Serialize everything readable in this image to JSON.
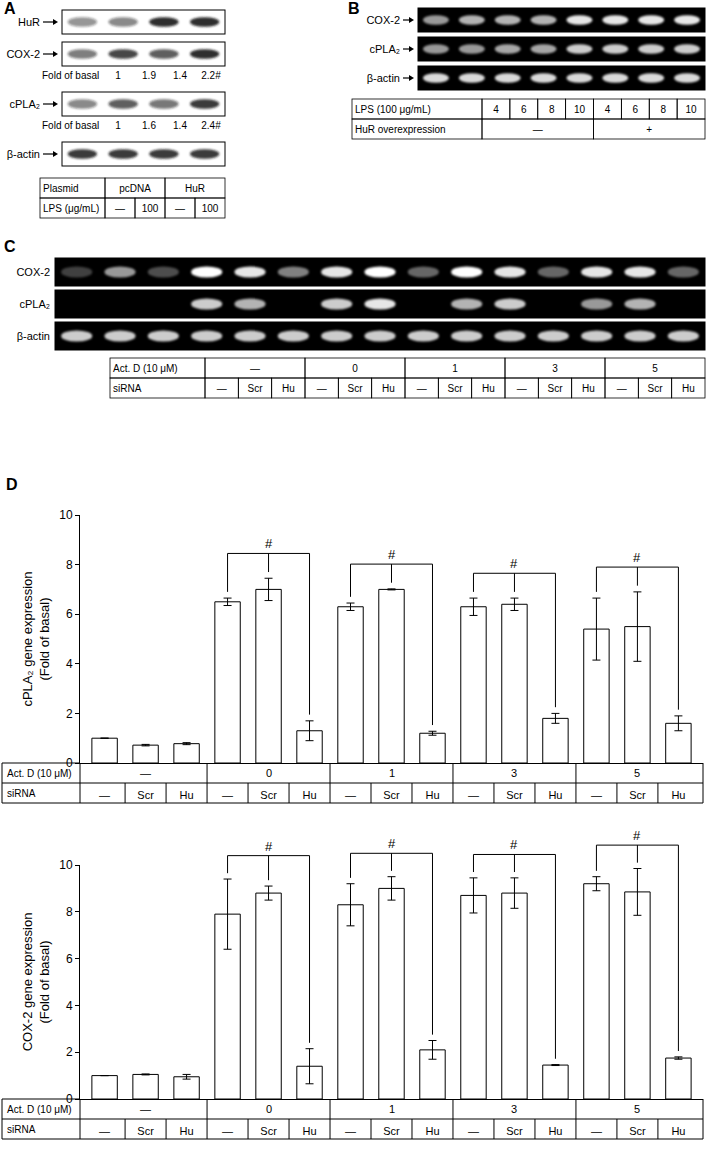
{
  "blots": [
    {
      "panel": "A",
      "kind": "western",
      "arrows": true,
      "rows": [
        {
          "name": "HuR",
          "bands": [
            0.45,
            0.5,
            0.9,
            0.9
          ]
        },
        {
          "name": "COX-2",
          "bands": [
            0.55,
            0.8,
            0.7,
            0.9
          ],
          "fold_title": "Fold of basal",
          "fold": [
            "1",
            "1.9",
            "1.4",
            "2.2#"
          ]
        },
        {
          "name": "cPLA₂",
          "bands": [
            0.5,
            0.7,
            0.6,
            0.85
          ],
          "fold_title": "Fold of basal",
          "fold": [
            "1",
            "1.6",
            "1.4",
            "2.4#"
          ]
        },
        {
          "name": "β-actin",
          "bands": [
            0.85,
            0.85,
            0.85,
            0.85
          ]
        }
      ],
      "table": [
        {
          "label": "Plasmid",
          "cells": [
            {
              "text": "pcDNA",
              "span": 2
            },
            {
              "text": "HuR",
              "span": 2
            }
          ]
        },
        {
          "label": "LPS (μg/mL)",
          "cells": [
            {
              "text": "—",
              "span": 1
            },
            {
              "text": "100",
              "span": 1
            },
            {
              "text": "—",
              "span": 1
            },
            {
              "text": "100",
              "span": 1
            }
          ]
        }
      ]
    },
    {
      "panel": "B",
      "kind": "gel",
      "arrows": true,
      "rows": [
        {
          "name": "COX-2",
          "bands": [
            0.6,
            0.7,
            0.7,
            0.7,
            0.9,
            0.9,
            0.9,
            0.9
          ]
        },
        {
          "name": "cPLA₂",
          "bands": [
            0.6,
            0.6,
            0.65,
            0.65,
            0.8,
            0.8,
            0.8,
            0.8
          ]
        },
        {
          "name": "β-actin",
          "bands": [
            0.85,
            0.85,
            0.85,
            0.85,
            0.85,
            0.85,
            0.85,
            0.85
          ]
        }
      ],
      "table": [
        {
          "label": "LPS (100 μg/mL)",
          "cells": [
            {
              "text": "4",
              "span": 1
            },
            {
              "text": "6",
              "span": 1
            },
            {
              "text": "8",
              "span": 1
            },
            {
              "text": "10",
              "span": 1
            },
            {
              "text": "4",
              "span": 1
            },
            {
              "text": "6",
              "span": 1
            },
            {
              "text": "8",
              "span": 1
            },
            {
              "text": "10",
              "span": 1
            }
          ]
        },
        {
          "label": "HuR overexpression",
          "cells": [
            {
              "text": "—",
              "span": 4
            },
            {
              "text": "+",
              "span": 4
            }
          ]
        }
      ]
    },
    {
      "panel": "C",
      "kind": "gel",
      "arrows": false,
      "rows": [
        {
          "name": "COX-2",
          "bands": [
            0.25,
            0.6,
            0.3,
            1,
            0.9,
            0.5,
            0.9,
            1,
            0.4,
            1,
            0.9,
            0.4,
            0.9,
            0.9,
            0.4
          ]
        },
        {
          "name": "cPLA₂",
          "bands": [
            0,
            0,
            0,
            0.8,
            0.7,
            0,
            0.8,
            0.9,
            0,
            0.7,
            0.8,
            0,
            0.6,
            0.7,
            0
          ]
        },
        {
          "name": "β-actin",
          "bands": [
            0.8,
            0.8,
            0.8,
            0.8,
            0.8,
            0.8,
            0.8,
            0.8,
            0.8,
            0.8,
            0.8,
            0.8,
            0.8,
            0.8,
            0.8
          ]
        }
      ],
      "table": [
        {
          "label": "Act. D (10 μM)",
          "cells": [
            {
              "text": "—",
              "span": 3
            },
            {
              "text": "0",
              "span": 3
            },
            {
              "text": "1",
              "span": 3
            },
            {
              "text": "3",
              "span": 3
            },
            {
              "text": "5",
              "span": 3
            }
          ]
        },
        {
          "label": "siRNA",
          "cells": [
            {
              "text": "—",
              "span": 1
            },
            {
              "text": "Scr",
              "span": 1
            },
            {
              "text": "Hu",
              "span": 1
            },
            {
              "text": "—",
              "span": 1
            },
            {
              "text": "Scr",
              "span": 1
            },
            {
              "text": "Hu",
              "span": 1
            },
            {
              "text": "—",
              "span": 1
            },
            {
              "text": "Scr",
              "span": 1
            },
            {
              "text": "Hu",
              "span": 1
            },
            {
              "text": "—",
              "span": 1
            },
            {
              "text": "Scr",
              "span": 1
            },
            {
              "text": "Hu",
              "span": 1
            },
            {
              "text": "—",
              "span": 1
            },
            {
              "text": "Scr",
              "span": 1
            },
            {
              "text": "Hu",
              "span": 1
            }
          ]
        }
      ]
    }
  ],
  "chart_data": [
    {
      "type": "bar",
      "panel": "D",
      "ylabel": "cPLA₂ gene expression\n(Fold of basal)",
      "categories": [
        "—",
        "Scr",
        "Hu",
        "—",
        "Scr",
        "Hu",
        "—",
        "Scr",
        "Hu",
        "—",
        "Scr",
        "Hu",
        "—",
        "Scr",
        "Hu"
      ],
      "category_row_label": "siRNA",
      "group_row": {
        "label": "Act. D (10 μM)",
        "groups": [
          "—",
          "0",
          "1",
          "3",
          "5"
        ]
      },
      "values": [
        1,
        0.72,
        0.78,
        6.5,
        7.0,
        1.3,
        6.3,
        7.0,
        1.2,
        6.3,
        6.4,
        1.8,
        5.4,
        5.5,
        1.6
      ],
      "errors": [
        0,
        0.03,
        0.04,
        0.15,
        0.45,
        0.4,
        0.15,
        0.02,
        0.08,
        0.35,
        0.25,
        0.2,
        1.25,
        1.4,
        0.3
      ],
      "color": "#ffffff",
      "ylim": [
        0,
        10
      ],
      "yticks": [
        0,
        2,
        4,
        6,
        8,
        10
      ],
      "grid": false,
      "significance": [
        {
          "bars": [
            3,
            4,
            5
          ],
          "label": "#"
        },
        {
          "bars": [
            6,
            7,
            8
          ],
          "label": "#"
        },
        {
          "bars": [
            9,
            10,
            11
          ],
          "label": "#"
        },
        {
          "bars": [
            12,
            13,
            14
          ],
          "label": "#"
        }
      ]
    },
    {
      "type": "bar",
      "ylabel": "COX-2 gene expression\n(Fold of basal)",
      "categories": [
        "—",
        "Scr",
        "Hu",
        "—",
        "Scr",
        "Hu",
        "—",
        "Scr",
        "Hu",
        "—",
        "Scr",
        "Hu",
        "—",
        "Scr",
        "Hu"
      ],
      "category_row_label": "siRNA",
      "group_row": {
        "label": "Act. D (10 μM)",
        "groups": [
          "—",
          "0",
          "1",
          "3",
          "5"
        ]
      },
      "values": [
        1,
        1.05,
        0.95,
        7.9,
        8.8,
        1.4,
        8.3,
        9.0,
        2.1,
        8.7,
        8.8,
        1.45,
        9.2,
        8.85,
        1.75
      ],
      "errors": [
        0,
        0.02,
        0.1,
        1.5,
        0.3,
        0.75,
        0.9,
        0.5,
        0.4,
        0.75,
        0.65,
        0.02,
        0.3,
        1.0,
        0.05
      ],
      "color": "#ffffff",
      "ylim": [
        0,
        10
      ],
      "yticks": [
        0,
        2,
        4,
        6,
        8,
        10
      ],
      "grid": false,
      "significance": [
        {
          "bars": [
            3,
            4,
            5
          ],
          "label": "#"
        },
        {
          "bars": [
            6,
            7,
            8
          ],
          "label": "#"
        },
        {
          "bars": [
            9,
            10,
            11
          ],
          "label": "#"
        },
        {
          "bars": [
            12,
            13,
            14
          ],
          "label": "#"
        }
      ]
    }
  ]
}
